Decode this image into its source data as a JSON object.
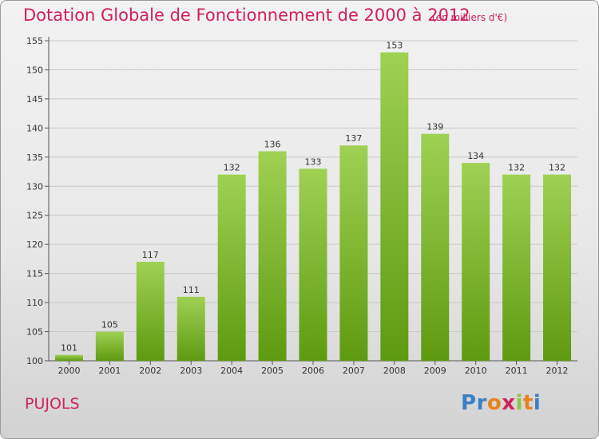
{
  "title": "Dotation Globale de Fonctionnement de 2000 à 2012",
  "subtitle": "(en milliers d'€)",
  "commune": "PUJOLS",
  "logo": {
    "letters": [
      "P",
      "r",
      "o",
      "x",
      "i",
      "t",
      "i"
    ],
    "colors": [
      "#3b7fc4",
      "#3b7fc4",
      "#e8821e",
      "#d0205a",
      "#8dc63f",
      "#e8821e",
      "#3b7fc4"
    ]
  },
  "colors": {
    "title": "#d0205a",
    "bar_light": "#9fd154",
    "bar_dark": "#5e9a10"
  },
  "chart_data": {
    "type": "bar",
    "categories": [
      "2000",
      "2001",
      "2002",
      "2003",
      "2004",
      "2005",
      "2006",
      "2007",
      "2008",
      "2009",
      "2010",
      "2011",
      "2012"
    ],
    "values": [
      101,
      105,
      117,
      111,
      132,
      136,
      133,
      137,
      153,
      139,
      134,
      132,
      132
    ],
    "ylim": [
      100,
      155
    ],
    "yticks": [
      100,
      105,
      110,
      115,
      120,
      125,
      130,
      135,
      140,
      145,
      150,
      155
    ],
    "grid": true
  }
}
